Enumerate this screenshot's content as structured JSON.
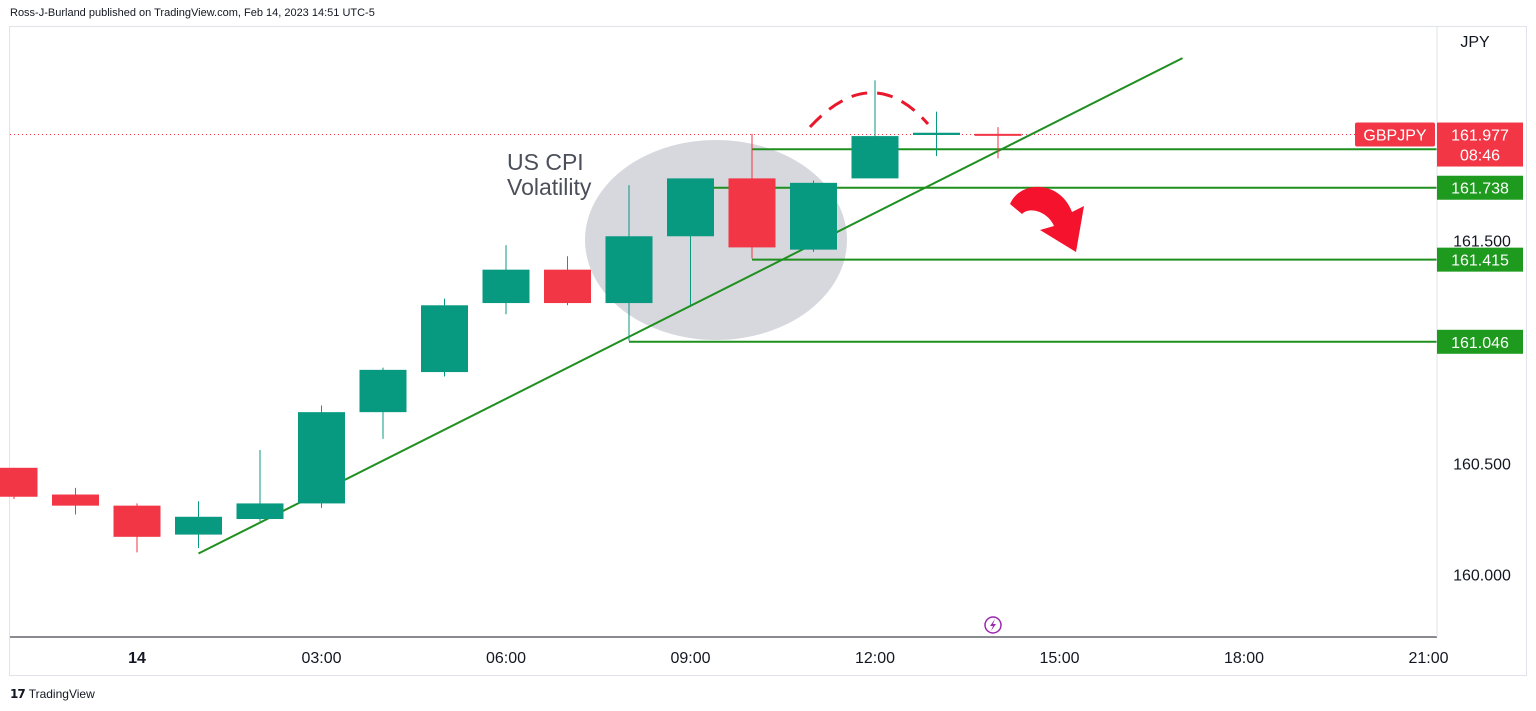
{
  "header": {
    "published_text": "Ross-J-Burland published on TradingView.com, Feb 14, 2023 14:51 UTC-5"
  },
  "branding": {
    "logo_icon": "tradingview-logo-icon",
    "name": "TradingView"
  },
  "colors": {
    "bull": "#089981",
    "bear": "#f23645",
    "trend": "#1f8f1f",
    "label_green": "#1e9a1e",
    "price_label": "#f23645"
  },
  "annotation": {
    "line1": "US CPI",
    "line2": "Volatility"
  },
  "chart_data": {
    "type": "candlestick",
    "symbol": "GBPJPY",
    "currency": "JPY",
    "last_price": "161.977",
    "countdown": "08:46",
    "y_ticks": [
      "161.500",
      "160.500",
      "160.000"
    ],
    "x_ticks": [
      "14",
      "03:00",
      "06:00",
      "09:00",
      "12:00",
      "15:00",
      "18:00",
      "21:00"
    ],
    "ylim": [
      159.72,
      162.46
    ],
    "candles": [
      {
        "t": -2,
        "o": 160.48,
        "h": 160.48,
        "l": 160.34,
        "c": 160.35
      },
      {
        "t": -1,
        "o": 160.36,
        "h": 160.39,
        "l": 160.27,
        "c": 160.31
      },
      {
        "t": 0,
        "o": 160.31,
        "h": 160.32,
        "l": 160.1,
        "c": 160.17
      },
      {
        "t": 1,
        "o": 160.18,
        "h": 160.33,
        "l": 160.12,
        "c": 160.26
      },
      {
        "t": 2,
        "o": 160.25,
        "h": 160.56,
        "l": 160.24,
        "c": 160.32
      },
      {
        "t": 3,
        "o": 160.32,
        "h": 160.76,
        "l": 160.3,
        "c": 160.73
      },
      {
        "t": 4,
        "o": 160.73,
        "h": 160.93,
        "l": 160.61,
        "c": 160.92
      },
      {
        "t": 5,
        "o": 160.91,
        "h": 161.24,
        "l": 160.89,
        "c": 161.21
      },
      {
        "t": 6,
        "o": 161.22,
        "h": 161.48,
        "l": 161.17,
        "c": 161.37
      },
      {
        "t": 7,
        "o": 161.37,
        "h": 161.43,
        "l": 161.21,
        "c": 161.22
      },
      {
        "t": 8,
        "o": 161.22,
        "h": 161.75,
        "l": 161.05,
        "c": 161.52
      },
      {
        "t": 9,
        "o": 161.52,
        "h": 161.77,
        "l": 161.21,
        "c": 161.78
      },
      {
        "t": 10,
        "o": 161.78,
        "h": 161.98,
        "l": 161.42,
        "c": 161.47
      },
      {
        "t": 11,
        "o": 161.46,
        "h": 161.77,
        "l": 161.45,
        "c": 161.76
      },
      {
        "t": 12,
        "o": 161.78,
        "h": 162.22,
        "l": 161.78,
        "c": 161.97
      },
      {
        "t": 13,
        "o": 161.975,
        "h": 162.08,
        "l": 161.88,
        "c": 161.985
      },
      {
        "t": 14,
        "o": 161.98,
        "h": 162.01,
        "l": 161.87,
        "c": 161.977
      }
    ],
    "levels": [
      {
        "label": "161.911",
        "value": 161.911,
        "from_t": 10
      },
      {
        "label": "161.738",
        "value": 161.738,
        "from_t": 9
      },
      {
        "label": "161.415",
        "value": 161.415,
        "from_t": 10
      },
      {
        "label": "161.046",
        "value": 161.046,
        "from_t": 8
      }
    ],
    "trendline": {
      "t1": 1,
      "p1": 160.095,
      "t2": 17,
      "p2": 162.32
    }
  }
}
